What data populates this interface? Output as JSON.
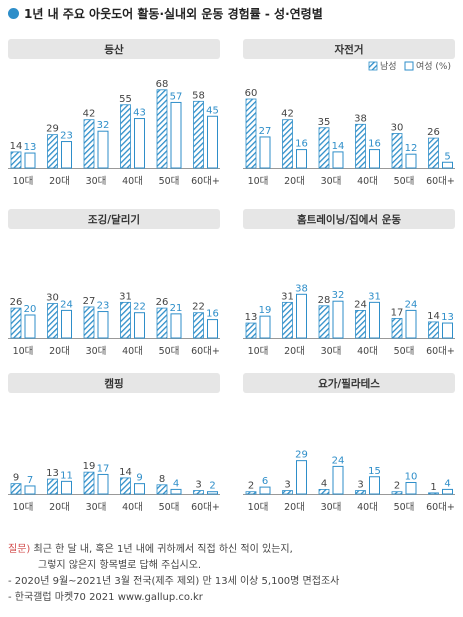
{
  "title": "1년 내 주요 아웃도어 활동·실내외 운동 경험률 - 성·연령별",
  "legend": {
    "male": "남성",
    "female": "여성 (%)"
  },
  "colors": {
    "accent": "#2e8ec9",
    "panel_header": "#e6e6e6",
    "axis": "#999999"
  },
  "chart_data": [
    {
      "type": "bar",
      "title": "등산",
      "categories": [
        "10대",
        "20대",
        "30대",
        "40대",
        "50대",
        "60대+"
      ],
      "ylim": [
        0,
        70
      ],
      "series": [
        {
          "name": "남성",
          "values": [
            14,
            29,
            42,
            55,
            68,
            58
          ]
        },
        {
          "name": "여성 (%)",
          "values": [
            13,
            23,
            32,
            43,
            57,
            45
          ]
        }
      ]
    },
    {
      "type": "bar",
      "title": "자전거",
      "categories": [
        "10대",
        "20대",
        "30대",
        "40대",
        "50대",
        "60대+"
      ],
      "ylim": [
        0,
        70
      ],
      "series": [
        {
          "name": "남성",
          "values": [
            60,
            42,
            35,
            38,
            30,
            26
          ]
        },
        {
          "name": "여성 (%)",
          "values": [
            27,
            16,
            14,
            16,
            12,
            5
          ]
        }
      ]
    },
    {
      "type": "bar",
      "title": "조깅/달리기",
      "categories": [
        "10대",
        "20대",
        "30대",
        "40대",
        "50대",
        "60대+"
      ],
      "ylim": [
        0,
        70
      ],
      "series": [
        {
          "name": "남성",
          "values": [
            26,
            30,
            27,
            31,
            26,
            22
          ]
        },
        {
          "name": "여성 (%)",
          "values": [
            20,
            24,
            23,
            22,
            21,
            16
          ]
        }
      ]
    },
    {
      "type": "bar",
      "title": "홈트레이닝/집에서 운동",
      "categories": [
        "10대",
        "20대",
        "30대",
        "40대",
        "50대",
        "60대+"
      ],
      "ylim": [
        0,
        70
      ],
      "series": [
        {
          "name": "남성",
          "values": [
            13,
            31,
            28,
            24,
            17,
            14
          ]
        },
        {
          "name": "여성 (%)",
          "values": [
            19,
            38,
            32,
            31,
            24,
            13
          ]
        }
      ]
    },
    {
      "type": "bar",
      "title": "캠핑",
      "categories": [
        "10대",
        "20대",
        "30대",
        "40대",
        "50대",
        "60대+"
      ],
      "ylim": [
        0,
        70
      ],
      "series": [
        {
          "name": "남성",
          "values": [
            9,
            13,
            19,
            14,
            8,
            3
          ]
        },
        {
          "name": "여성 (%)",
          "values": [
            7,
            11,
            17,
            9,
            4,
            2
          ]
        }
      ]
    },
    {
      "type": "bar",
      "title": "요가/필라테스",
      "categories": [
        "10대",
        "20대",
        "30대",
        "40대",
        "50대",
        "60대+"
      ],
      "ylim": [
        0,
        70
      ],
      "series": [
        {
          "name": "남성",
          "values": [
            2,
            3,
            4,
            3,
            2,
            1
          ]
        },
        {
          "name": "여성 (%)",
          "values": [
            6,
            29,
            24,
            15,
            10,
            4
          ]
        }
      ]
    }
  ],
  "notes": {
    "question_label": "질문)",
    "question_line1": "최근 한 달 내, 혹은 1년 내에 귀하께서 직접 하신 적이 있는지,",
    "question_line2": "그렇지 않은지 항목별로 답해 주십시오.",
    "survey": "- 2020년 9월~2021년 3월 전국(제주 제외) 만 13세 이상 5,100명 면접조사",
    "source": "- 한국갤럽 마켓70 2021 www.gallup.co.kr"
  }
}
